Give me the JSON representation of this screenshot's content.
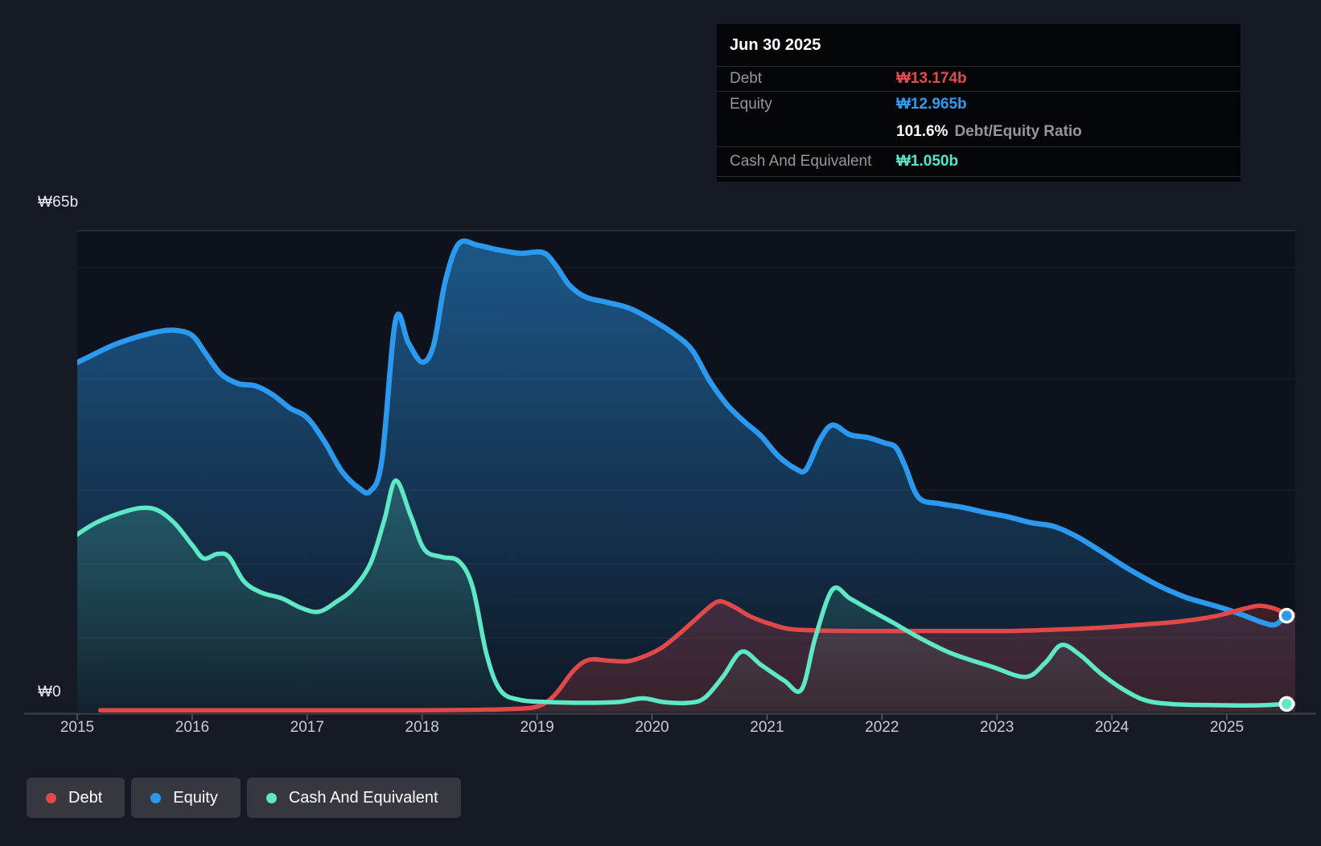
{
  "ui": {
    "y_axis_labels": [
      "₩65b",
      "₩0"
    ],
    "x_tick_labels": [
      "2015",
      "2016",
      "2017",
      "2018",
      "2019",
      "2020",
      "2021",
      "2022",
      "2023",
      "2024",
      "2025"
    ]
  },
  "tooltip": {
    "date": "Jun 30 2025",
    "rows": [
      {
        "label": "Debt",
        "value": "₩13.174b",
        "color": "#e5484d"
      },
      {
        "label": "Equity",
        "value": "₩12.965b",
        "color": "#2f9bef"
      },
      {
        "label": "Cash And Equivalent",
        "value": "₩1.050b",
        "color": "#53e5c5"
      }
    ],
    "ratio_value": "101.6%",
    "ratio_label": "Debt/Equity Ratio"
  },
  "legend": {
    "items": [
      {
        "label": "Debt",
        "color": "#e0484a"
      },
      {
        "label": "Equity",
        "color": "#2b99ee"
      },
      {
        "label": "Cash And Equivalent",
        "color": "#5ee8c5"
      }
    ]
  },
  "chart_data": {
    "type": "area",
    "unit": "KRW billions",
    "x_axis": {
      "ticks": [
        2015,
        2016,
        2017,
        2018,
        2019,
        2020,
        2021,
        2022,
        2023,
        2024,
        2025
      ],
      "range": [
        2014.95,
        2025.62
      ]
    },
    "y_axis": {
      "min": 0,
      "max": 65,
      "top_label": "₩65b",
      "bottom_label": "₩0",
      "gridline_values": [
        65,
        60,
        45,
        30,
        20,
        10
      ]
    },
    "legend_position": "bottom-left",
    "series": [
      {
        "name": "Debt",
        "color": "#e0484a",
        "points": [
          [
            2015.2,
            0.2
          ],
          [
            2015.7,
            0.2
          ],
          [
            2016.2,
            0.2
          ],
          [
            2016.8,
            0.2
          ],
          [
            2017.4,
            0.2
          ],
          [
            2018.0,
            0.2
          ],
          [
            2018.45,
            0.25
          ],
          [
            2018.75,
            0.35
          ],
          [
            2019.0,
            0.7
          ],
          [
            2019.15,
            2.2
          ],
          [
            2019.32,
            5.6
          ],
          [
            2019.45,
            7.0
          ],
          [
            2019.62,
            6.9
          ],
          [
            2019.78,
            6.8
          ],
          [
            2019.92,
            7.4
          ],
          [
            2020.08,
            8.6
          ],
          [
            2020.22,
            10.3
          ],
          [
            2020.38,
            12.5
          ],
          [
            2020.52,
            14.4
          ],
          [
            2020.6,
            14.9
          ],
          [
            2020.72,
            14.1
          ],
          [
            2020.85,
            12.9
          ],
          [
            2021.0,
            12.0
          ],
          [
            2021.18,
            11.2
          ],
          [
            2021.38,
            11.0
          ],
          [
            2021.7,
            10.9
          ],
          [
            2022.1,
            10.9
          ],
          [
            2022.6,
            10.9
          ],
          [
            2023.1,
            10.9
          ],
          [
            2023.45,
            11.05
          ],
          [
            2023.85,
            11.3
          ],
          [
            2024.25,
            11.75
          ],
          [
            2024.6,
            12.2
          ],
          [
            2024.9,
            12.9
          ],
          [
            2025.1,
            13.7
          ],
          [
            2025.28,
            14.3
          ],
          [
            2025.42,
            13.9
          ],
          [
            2025.52,
            13.174
          ],
          [
            2025.62,
            13.1
          ]
        ]
      },
      {
        "name": "Equity",
        "color": "#2b99ee",
        "points": [
          [
            2014.95,
            46.8
          ],
          [
            2015.1,
            47.9
          ],
          [
            2015.3,
            49.4
          ],
          [
            2015.5,
            50.5
          ],
          [
            2015.7,
            51.3
          ],
          [
            2015.85,
            51.5
          ],
          [
            2016.0,
            50.8
          ],
          [
            2016.12,
            48.3
          ],
          [
            2016.25,
            45.6
          ],
          [
            2016.4,
            44.3
          ],
          [
            2016.55,
            44.0
          ],
          [
            2016.7,
            42.8
          ],
          [
            2016.85,
            41.0
          ],
          [
            2017.0,
            39.7
          ],
          [
            2017.15,
            36.5
          ],
          [
            2017.3,
            32.5
          ],
          [
            2017.45,
            30.2
          ],
          [
            2017.55,
            29.8
          ],
          [
            2017.65,
            34.0
          ],
          [
            2017.77,
            52.9
          ],
          [
            2017.88,
            49.8
          ],
          [
            2018.0,
            47.2
          ],
          [
            2018.1,
            49.5
          ],
          [
            2018.2,
            58.0
          ],
          [
            2018.32,
            63.2
          ],
          [
            2018.48,
            63.0
          ],
          [
            2018.65,
            62.4
          ],
          [
            2018.85,
            61.9
          ],
          [
            2019.05,
            62.0
          ],
          [
            2019.16,
            60.3
          ],
          [
            2019.28,
            57.6
          ],
          [
            2019.42,
            56.0
          ],
          [
            2019.6,
            55.3
          ],
          [
            2019.8,
            54.5
          ],
          [
            2020.0,
            52.9
          ],
          [
            2020.2,
            50.9
          ],
          [
            2020.35,
            48.8
          ],
          [
            2020.5,
            44.7
          ],
          [
            2020.65,
            41.5
          ],
          [
            2020.8,
            39.2
          ],
          [
            2020.95,
            37.2
          ],
          [
            2021.1,
            34.5
          ],
          [
            2021.25,
            32.8
          ],
          [
            2021.34,
            32.7
          ],
          [
            2021.46,
            36.7
          ],
          [
            2021.57,
            38.7
          ],
          [
            2021.72,
            37.4
          ],
          [
            2021.88,
            37.0
          ],
          [
            2022.02,
            36.3
          ],
          [
            2022.12,
            35.7
          ],
          [
            2022.2,
            33.2
          ],
          [
            2022.32,
            28.9
          ],
          [
            2022.5,
            28.1
          ],
          [
            2022.7,
            27.6
          ],
          [
            2022.9,
            26.9
          ],
          [
            2023.1,
            26.3
          ],
          [
            2023.3,
            25.5
          ],
          [
            2023.5,
            25.0
          ],
          [
            2023.7,
            23.6
          ],
          [
            2023.9,
            21.7
          ],
          [
            2024.1,
            19.7
          ],
          [
            2024.3,
            17.9
          ],
          [
            2024.45,
            16.7
          ],
          [
            2024.65,
            15.4
          ],
          [
            2024.85,
            14.5
          ],
          [
            2025.0,
            13.8
          ],
          [
            2025.15,
            13.0
          ],
          [
            2025.3,
            12.1
          ],
          [
            2025.42,
            11.75
          ],
          [
            2025.52,
            12.965
          ],
          [
            2025.62,
            13.0
          ]
        ]
      },
      {
        "name": "Cash And Equivalent",
        "color": "#5ee8c5",
        "points": [
          [
            2014.95,
            23.4
          ],
          [
            2015.15,
            25.4
          ],
          [
            2015.35,
            26.7
          ],
          [
            2015.55,
            27.5
          ],
          [
            2015.7,
            27.2
          ],
          [
            2015.85,
            25.4
          ],
          [
            2016.0,
            22.5
          ],
          [
            2016.1,
            20.7
          ],
          [
            2016.22,
            21.3
          ],
          [
            2016.32,
            20.9
          ],
          [
            2016.45,
            17.6
          ],
          [
            2016.6,
            16.1
          ],
          [
            2016.78,
            15.3
          ],
          [
            2016.95,
            14.0
          ],
          [
            2017.1,
            13.5
          ],
          [
            2017.25,
            14.8
          ],
          [
            2017.4,
            16.6
          ],
          [
            2017.55,
            20.0
          ],
          [
            2017.67,
            25.8
          ],
          [
            2017.77,
            31.2
          ],
          [
            2017.9,
            26.5
          ],
          [
            2018.02,
            21.9
          ],
          [
            2018.17,
            20.9
          ],
          [
            2018.32,
            20.3
          ],
          [
            2018.44,
            16.8
          ],
          [
            2018.56,
            7.8
          ],
          [
            2018.68,
            2.9
          ],
          [
            2018.85,
            1.6
          ],
          [
            2019.1,
            1.3
          ],
          [
            2019.4,
            1.2
          ],
          [
            2019.7,
            1.3
          ],
          [
            2019.92,
            1.8
          ],
          [
            2020.1,
            1.3
          ],
          [
            2020.32,
            1.2
          ],
          [
            2020.46,
            1.9
          ],
          [
            2020.62,
            4.8
          ],
          [
            2020.78,
            8.1
          ],
          [
            2020.95,
            6.3
          ],
          [
            2021.15,
            4.2
          ],
          [
            2021.3,
            3.0
          ],
          [
            2021.42,
            10.0
          ],
          [
            2021.57,
            16.5
          ],
          [
            2021.72,
            15.3
          ],
          [
            2021.9,
            13.7
          ],
          [
            2022.1,
            12.0
          ],
          [
            2022.3,
            10.2
          ],
          [
            2022.6,
            7.9
          ],
          [
            2022.95,
            6.1
          ],
          [
            2023.25,
            4.7
          ],
          [
            2023.42,
            6.6
          ],
          [
            2023.56,
            9.0
          ],
          [
            2023.72,
            7.7
          ],
          [
            2023.9,
            5.2
          ],
          [
            2024.1,
            3.0
          ],
          [
            2024.3,
            1.5
          ],
          [
            2024.55,
            1.0
          ],
          [
            2024.85,
            0.9
          ],
          [
            2025.15,
            0.85
          ],
          [
            2025.35,
            0.9
          ],
          [
            2025.52,
            1.05
          ],
          [
            2025.62,
            1.05
          ]
        ]
      }
    ],
    "hover_markers": [
      {
        "series": "Equity",
        "x": 2025.52,
        "value": 12.965
      },
      {
        "series": "Cash And Equivalent",
        "x": 2025.52,
        "value": 1.05
      }
    ]
  }
}
